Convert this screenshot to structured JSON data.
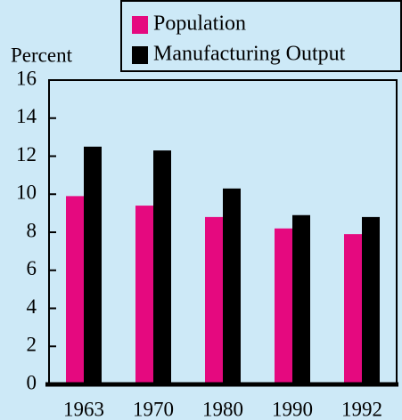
{
  "chart_data": {
    "type": "bar",
    "y_label": "Percent",
    "categories": [
      "1963",
      "1970",
      "1980",
      "1990",
      "1992"
    ],
    "series": [
      {
        "name": "Population",
        "color": "#e5097f",
        "values": [
          9.9,
          9.4,
          8.8,
          8.2,
          7.9
        ]
      },
      {
        "name": "Manufacturing Output",
        "color": "#000000",
        "values": [
          12.5,
          12.3,
          10.3,
          8.9,
          8.8
        ]
      }
    ],
    "ylim": [
      0,
      16
    ],
    "yticks": [
      0,
      2,
      4,
      6,
      8,
      10,
      12,
      14,
      16
    ],
    "legend": "top-right"
  }
}
